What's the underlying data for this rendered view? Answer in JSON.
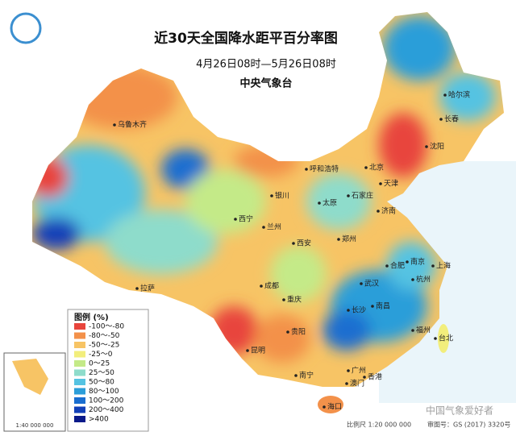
{
  "header": {
    "title": "近30天全国降水距平百分率图",
    "subtitle": "4月26日08时—5月26日08时",
    "issuer": "中央气象台"
  },
  "legend": {
    "title": "图例 (%)",
    "items": [
      {
        "label": "-100～-80",
        "color": "#e8453c"
      },
      {
        "label": "-80～-50",
        "color": "#f3914a"
      },
      {
        "label": "-50～-25",
        "color": "#f7c465"
      },
      {
        "label": "-25～0",
        "color": "#f2ee7c"
      },
      {
        "label": "0～25",
        "color": "#c4ea88"
      },
      {
        "label": "25～50",
        "color": "#8edccb"
      },
      {
        "label": "50～80",
        "color": "#55c3e2"
      },
      {
        "label": "80～100",
        "color": "#2c9ed9"
      },
      {
        "label": "100～200",
        "color": "#1a6ed0"
      },
      {
        "label": "200～400",
        "color": "#1240b8"
      },
      {
        "label": ">400",
        "color": "#0a1a8a"
      }
    ]
  },
  "cities": [
    "乌鲁木齐",
    "西宁",
    "兰州",
    "拉萨",
    "成都",
    "重庆",
    "贵阳",
    "昆明",
    "南宁",
    "海口",
    "广州",
    "香港",
    "澳门",
    "福州",
    "台北",
    "南昌",
    "长沙",
    "武汉",
    "杭州",
    "上海",
    "南京",
    "合肥",
    "郑州",
    "济南",
    "石家庄",
    "太原",
    "天津",
    "北京",
    "呼和浩特",
    "银川",
    "西安",
    "沈阳",
    "长春",
    "哈尔滨"
  ],
  "inset": {
    "scale": "1:40 000 000"
  },
  "footer": {
    "scale": "比例尺 1:20 000 000",
    "approval": "审图号：GS (2017) 3320号"
  },
  "watermark": "中国气象爱好者"
}
